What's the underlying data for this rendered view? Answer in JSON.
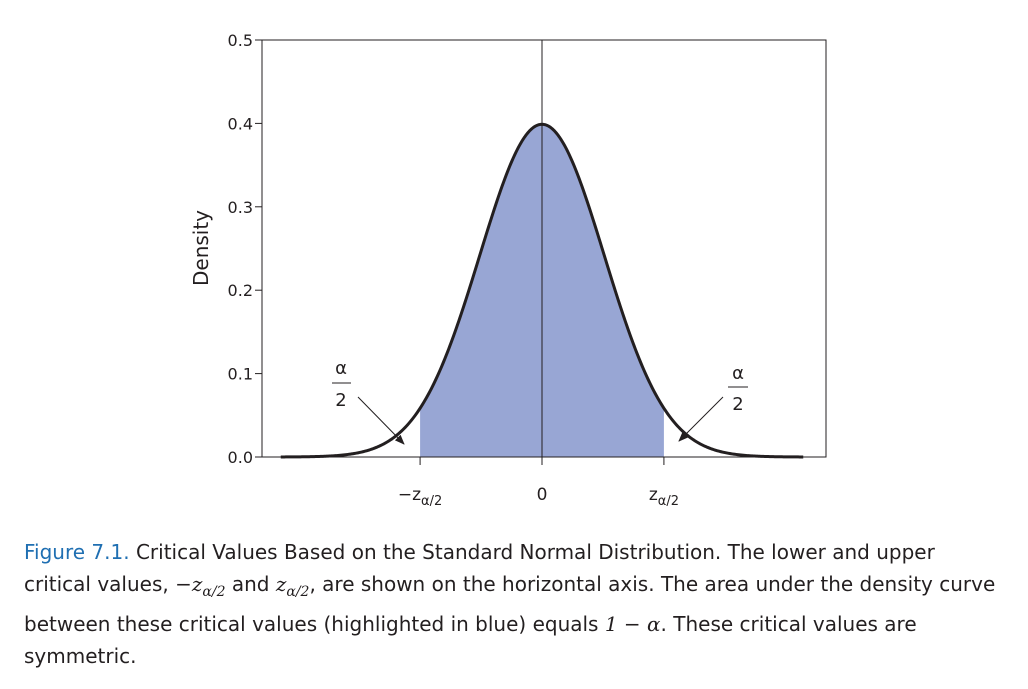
{
  "chart_data": {
    "type": "area",
    "ylabel": "Density",
    "ylim": [
      0,
      0.5
    ],
    "yticks": [
      "0.0",
      "0.1",
      "0.2",
      "0.3",
      "0.4",
      "0.5"
    ],
    "xlim": [
      -4.2,
      4.2
    ],
    "x_labels": {
      "lower_prefix": "−z",
      "lower_sub": "α/2",
      "center": "0",
      "upper_prefix": "z",
      "upper_sub": "α/2"
    },
    "critical_value": 1.96,
    "series": [
      {
        "curve": "standard normal density",
        "peak": 0.399,
        "shaded_between": [
          -1.96,
          1.96
        ],
        "fill_color": "#98a6d4",
        "line_color": "#231f20"
      }
    ],
    "annotations": {
      "left_tail": {
        "numerator": "α",
        "denominator": "2"
      },
      "right_tail": {
        "numerator": "α",
        "denominator": "2"
      }
    }
  },
  "caption": {
    "figure_label": "Figure 7.1.",
    "part1": " Critical Values Based on the Standard Normal Distribution. The lower and upper critical values, ",
    "math_lower": "−z",
    "math_lower_sub": "α/2",
    "part2": " and ",
    "math_upper": "z",
    "math_upper_sub": "α/2",
    "part3": ", are shown on the horizontal axis. The area under the density curve between these critical values (highlighted in blue) equals ",
    "math_expr": "1 − α",
    "part4": ". These critical values are symmetric."
  },
  "colors": {
    "shade": "#98a6d4",
    "caption_label": "#1f6fb2",
    "ink": "#231f20"
  }
}
